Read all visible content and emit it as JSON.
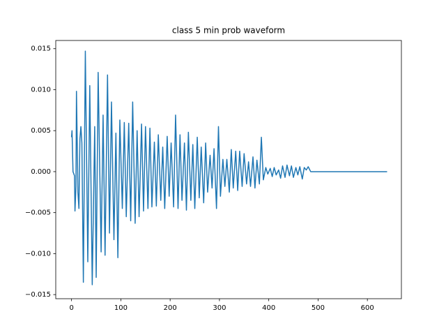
{
  "chart_data": {
    "type": "line",
    "title": "class 5 min prob waveform",
    "xlim": [
      -32,
      669
    ],
    "ylim": [
      -0.0155,
      0.016
    ],
    "xticks": [
      0,
      100,
      200,
      300,
      400,
      500,
      600
    ],
    "yticks": [
      {
        "value": -0.015,
        "label": "−0.015"
      },
      {
        "value": -0.01,
        "label": "−0.010"
      },
      {
        "value": -0.005,
        "label": "−0.005"
      },
      {
        "value": 0,
        "label": "0.000"
      },
      {
        "value": 0.005,
        "label": "0.005"
      },
      {
        "value": 0.01,
        "label": "0.010"
      },
      {
        "value": 0.015,
        "label": "0.015"
      }
    ],
    "grid": false,
    "series": [
      {
        "color": "#1f77b4",
        "x": [
          0,
          1,
          3,
          6,
          7,
          9,
          10,
          13,
          15,
          17,
          19,
          21,
          24,
          28,
          33,
          37,
          42,
          47,
          50,
          54,
          60,
          64,
          68,
          73,
          77,
          81,
          86,
          90,
          94,
          98,
          103,
          107,
          111,
          116,
          120,
          124,
          129,
          133,
          137,
          142,
          146,
          150,
          155,
          159,
          163,
          168,
          172,
          176,
          181,
          185,
          189,
          194,
          198,
          202,
          207,
          211,
          216,
          220,
          224,
          229,
          233,
          237,
          242,
          246,
          250,
          255,
          259,
          263,
          268,
          272,
          276,
          281,
          285,
          289,
          294,
          298,
          302,
          307,
          311,
          315,
          320,
          324,
          328,
          333,
          337,
          341,
          346,
          350,
          355,
          359,
          363,
          368,
          372,
          376,
          381,
          385,
          389,
          394,
          398,
          403,
          407,
          411,
          415,
          420,
          424,
          428,
          433,
          437,
          442,
          446,
          450,
          455,
          459,
          463,
          468,
          472,
          476,
          480,
          485,
          640
        ],
        "values": [
          0.0042,
          0.005,
          0.0,
          -0.0005,
          -0.0048,
          -0.0018,
          0.0098,
          -0.0025,
          -0.0045,
          0.004,
          0.0055,
          0.0035,
          -0.0135,
          0.0147,
          -0.011,
          0.0105,
          -0.0138,
          0.0055,
          -0.0129,
          0.0121,
          -0.0098,
          0.0069,
          -0.0102,
          0.0118,
          -0.0075,
          0.0085,
          -0.0083,
          0.0047,
          -0.0105,
          0.0063,
          -0.0045,
          0.006,
          -0.0055,
          0.0059,
          -0.006,
          0.0085,
          -0.0063,
          0.005,
          -0.0055,
          0.0058,
          -0.0048,
          0.0055,
          -0.0045,
          0.0053,
          -0.0043,
          0.0036,
          -0.0042,
          0.0045,
          -0.0035,
          0.003,
          -0.0045,
          0.0043,
          -0.003,
          0.0035,
          -0.0043,
          0.0069,
          -0.0045,
          0.0045,
          -0.0035,
          0.0035,
          -0.0047,
          0.0048,
          -0.0035,
          0.0033,
          -0.0045,
          0.0042,
          -0.0032,
          0.003,
          -0.0038,
          0.0035,
          -0.0025,
          0.002,
          -0.002,
          0.0028,
          -0.0045,
          0.0055,
          -0.003,
          0.0015,
          -0.0018,
          0.0015,
          -0.0025,
          0.0027,
          -0.002,
          0.0025,
          -0.0023,
          0.0025,
          -0.0018,
          0.0022,
          -0.0015,
          0.0012,
          -0.0018,
          0.0018,
          -0.002,
          0.0014,
          -0.0015,
          0.0042,
          -0.001,
          0.0005,
          -0.0003,
          0.0004,
          -0.0006,
          0.0005,
          -0.0004,
          0.0002,
          -0.0008,
          0.0007,
          -0.0007,
          0.0008,
          -0.0005,
          0.0007,
          -0.0007,
          0.0005,
          -0.0004,
          0.0006,
          -0.0009,
          0.0005,
          0.0002,
          0.0006,
          0.0,
          0.0
        ]
      }
    ]
  }
}
